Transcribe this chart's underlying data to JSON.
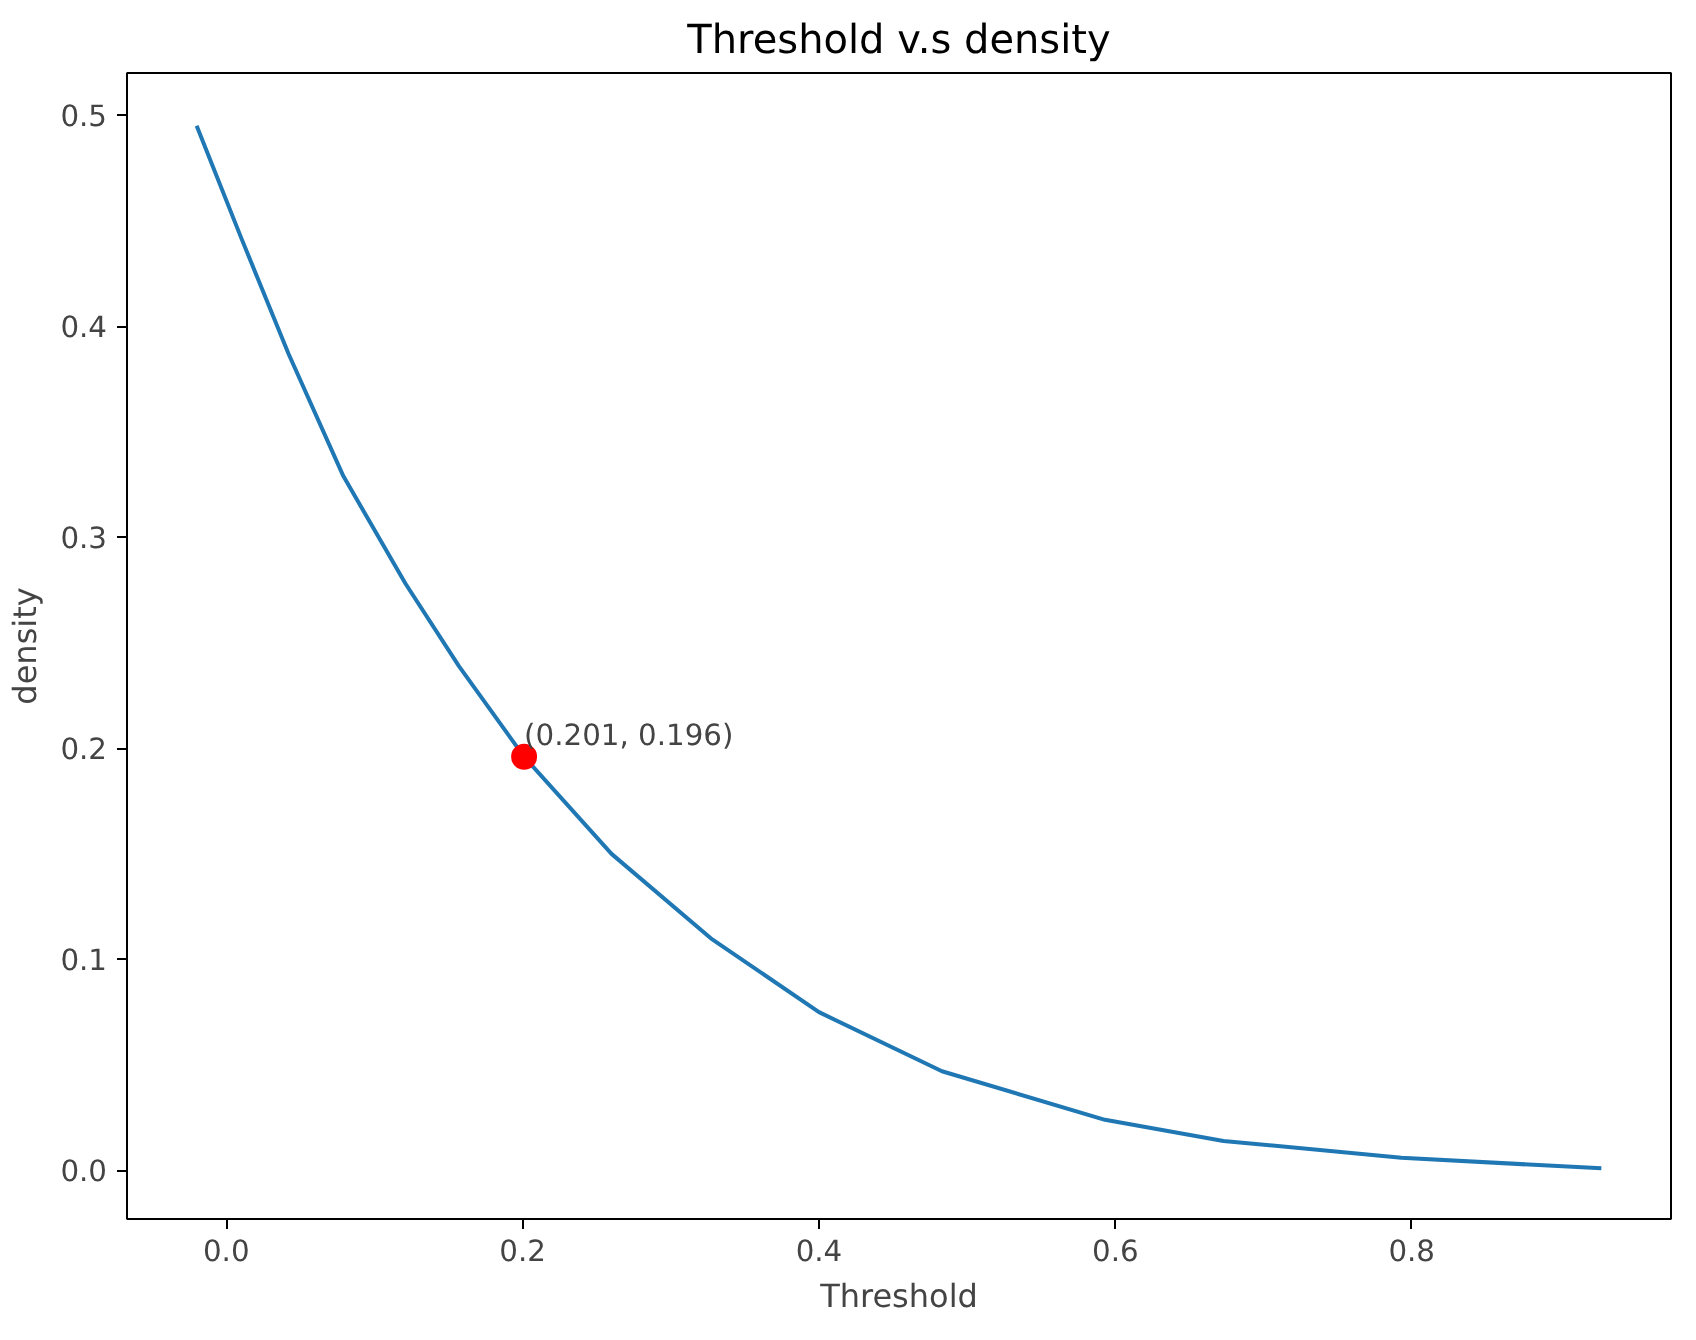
{
  "chart_data": {
    "type": "line",
    "title": "Threshold v.s density",
    "xlabel": "Threshold",
    "ylabel": "density",
    "xlim": [
      -0.067,
      0.975
    ],
    "ylim": [
      -0.023,
      0.52
    ],
    "xticks": [
      {
        "value": 0,
        "label": "0.0"
      },
      0.2,
      0.4,
      0.6,
      0.8
    ],
    "yticks": [
      {
        "value": 0,
        "label": "0.0"
      },
      0.1,
      0.2,
      0.3,
      0.4,
      0.5
    ],
    "series": [
      {
        "color": "#1f77b4",
        "x": [
          -0.02,
          0.01,
          0.042,
          0.079,
          0.121,
          0.157,
          0.201,
          0.26,
          0.327,
          0.4,
          0.483,
          0.593,
          0.673,
          0.793,
          0.928
        ],
        "values": [
          0.495,
          0.442,
          0.387,
          0.329,
          0.278,
          0.239,
          0.196,
          0.15,
          0.11,
          0.075,
          0.047,
          0.024,
          0.014,
          0.006,
          0.001
        ]
      },
      {
        "type": "scatter",
        "color": "#ff0000",
        "x": [
          0.201
        ],
        "values": [
          0.196
        ]
      }
    ],
    "annotations": [
      {
        "text": "(0.201, 0.196)",
        "x": 0.201,
        "y": 0.196
      }
    ]
  }
}
